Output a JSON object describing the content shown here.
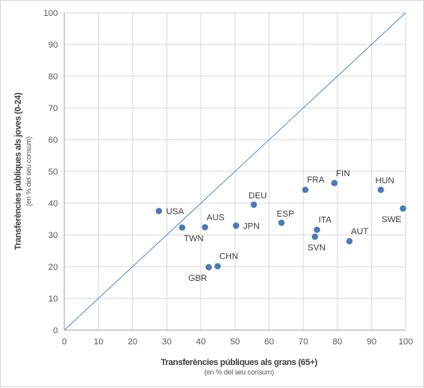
{
  "chart_data": {
    "type": "scatter",
    "title": "",
    "xlabel": "Transferències públiques als grans (65+)",
    "xlabel_sub": "(en % del seu consum)",
    "ylabel": "Transferències públiques als joves (0-24)",
    "ylabel_sub": "(en % del seu consum)",
    "xlim": [
      0,
      100
    ],
    "ylim": [
      0,
      100
    ],
    "xticks": [
      0,
      10,
      20,
      30,
      40,
      50,
      60,
      70,
      80,
      90,
      100
    ],
    "yticks": [
      0,
      10,
      20,
      30,
      40,
      50,
      60,
      70,
      80,
      90,
      100
    ],
    "grid": true,
    "reference_line": {
      "from": [
        0,
        0
      ],
      "to": [
        100,
        100
      ]
    },
    "colors": {
      "points": "#4a7ab8",
      "line": "#5b8cc2",
      "grid": "#d9d9d9",
      "axis": "#a6a6a6"
    },
    "points": [
      {
        "label": "USA",
        "x": 27.7,
        "y": 37.5,
        "label_pos": "right"
      },
      {
        "label": "TWN",
        "x": 34.5,
        "y": 32.3,
        "label_pos": "below-right"
      },
      {
        "label": "AUS",
        "x": 41.2,
        "y": 32.4,
        "label_pos": "above-right"
      },
      {
        "label": "GBR",
        "x": 42.3,
        "y": 19.8,
        "label_pos": "below-left"
      },
      {
        "label": "CHN",
        "x": 44.9,
        "y": 20.1,
        "label_pos": "above-right"
      },
      {
        "label": "JPN",
        "x": 50.3,
        "y": 32.9,
        "label_pos": "right"
      },
      {
        "label": "DEU",
        "x": 55.5,
        "y": 39.5,
        "label_pos": "above"
      },
      {
        "label": "ESP",
        "x": 63.6,
        "y": 33.8,
        "label_pos": "above"
      },
      {
        "label": "FRA",
        "x": 70.6,
        "y": 44.2,
        "label_pos": "above-right"
      },
      {
        "label": "ITA",
        "x": 74.0,
        "y": 31.6,
        "label_pos": "above-right"
      },
      {
        "label": "SVN",
        "x": 73.4,
        "y": 29.4,
        "label_pos": "below"
      },
      {
        "label": "FIN",
        "x": 79.1,
        "y": 46.3,
        "label_pos": "above-right"
      },
      {
        "label": "AUT",
        "x": 83.5,
        "y": 28.0,
        "label_pos": "above-right"
      },
      {
        "label": "HUN",
        "x": 92.7,
        "y": 44.2,
        "label_pos": "above"
      },
      {
        "label": "SWE",
        "x": 99.2,
        "y": 38.3,
        "label_pos": "below-left"
      }
    ]
  }
}
